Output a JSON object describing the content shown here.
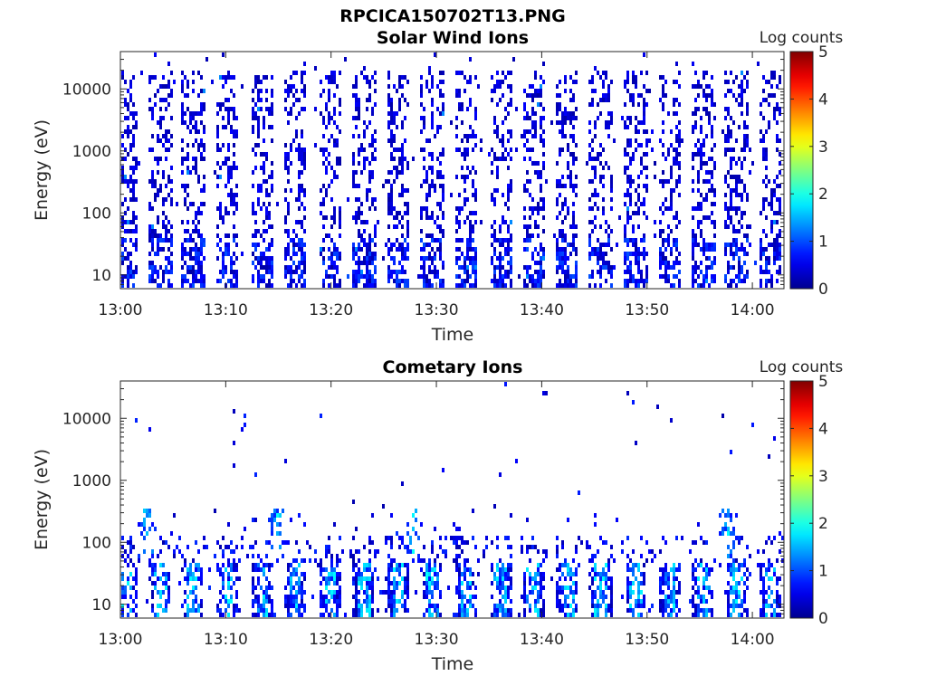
{
  "figure_title": "RPCICA150702T13.PNG",
  "colors": {
    "axis": "#262626",
    "colormap": [
      "#00008f",
      "#0000ff",
      "#0080ff",
      "#00ffff",
      "#80ff80",
      "#ffff00",
      "#ff8000",
      "#ff0000",
      "#800000"
    ]
  },
  "chart_data": [
    {
      "type": "heatmap",
      "title": "Solar Wind Ions",
      "xlabel": "Time",
      "ylabel": "Energy (eV)",
      "xscale": "time",
      "yscale": "log",
      "xlim": [
        "13:00",
        "14:03"
      ],
      "ylim": [
        6,
        40000
      ],
      "xticks": [
        "13:00",
        "13:10",
        "13:20",
        "13:30",
        "13:40",
        "13:50",
        "14:00"
      ],
      "yticks": [
        10,
        100,
        1000,
        10000
      ],
      "yticklabels": [
        "10",
        "100",
        "1000",
        "10000"
      ],
      "colorbar": {
        "label": "Log counts",
        "range": [
          0,
          5
        ],
        "ticks": [
          "0",
          "1",
          "2",
          "3",
          "4",
          "5"
        ]
      },
      "pattern": "periodic energy sweeps roughly every 3 minutes; sparse counts 6 eV – 20 keV, mostly 0–1 log counts",
      "sweep_times_min": [
        0.5,
        3.7,
        6.8,
        10,
        13.4,
        16.5,
        19.8,
        23,
        26.3,
        29.5,
        32.7,
        36,
        39.1,
        42.3,
        45.5,
        48.8,
        52,
        55.2,
        58.4,
        61.6
      ],
      "seed": 7
    },
    {
      "type": "heatmap",
      "title": "Cometary Ions",
      "xlabel": "Time",
      "ylabel": "Energy (eV)",
      "xscale": "time",
      "yscale": "log",
      "xlim": [
        "13:00",
        "14:03"
      ],
      "ylim": [
        6,
        40000
      ],
      "xticks": [
        "13:00",
        "13:10",
        "13:20",
        "13:30",
        "13:40",
        "13:50",
        "14:00"
      ],
      "yticks": [
        10,
        100,
        1000,
        10000
      ],
      "yticklabels": [
        "10",
        "100",
        "1000",
        "10000"
      ],
      "colorbar": {
        "label": "Log counts",
        "range": [
          0,
          5
        ],
        "ticks": [
          "0",
          "1",
          "2",
          "3",
          "4",
          "5"
        ]
      },
      "pattern": "low-energy cometary ion population 6–300 eV with periodic enhancements up to ~2 log counts; sparse points at higher energies",
      "sweep_times_min": [
        0.5,
        3.7,
        6.8,
        10,
        13.4,
        16.5,
        19.8,
        23,
        26.3,
        29.5,
        32.7,
        36,
        39.1,
        42.3,
        45.5,
        48.8,
        52,
        55.2,
        58.4,
        61.6
      ],
      "enhancements_min": [
        2.4,
        14.8,
        27.6,
        57.5
      ],
      "seed": 23
    }
  ]
}
